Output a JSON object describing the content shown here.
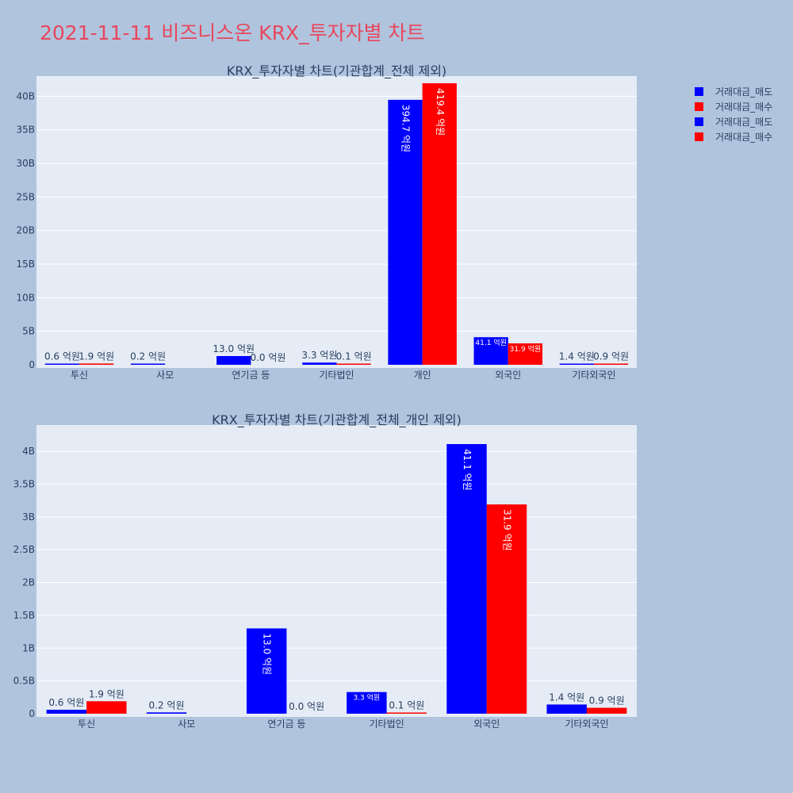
{
  "title": "2021-11-11 비즈니스온 KRX_투자자별 차트",
  "colors": {
    "sell": "#0000ff",
    "buy": "#ff0000",
    "plot_bg": "#e5ecf6",
    "page_bg": "#b0c4de",
    "title": "#e8475c"
  },
  "legend": [
    {
      "label": "거래대금_매도",
      "color": "#0000ff"
    },
    {
      "label": "거래대금_매수",
      "color": "#ff0000"
    },
    {
      "label": "거래대금_매도",
      "color": "#0000ff"
    },
    {
      "label": "거래대금_매수",
      "color": "#ff0000"
    }
  ],
  "chart_data": [
    {
      "type": "bar",
      "title": "KRX_투자자별 차트(기관합계_전체 제외)",
      "categories": [
        "투신",
        "사모",
        "연기금 등",
        "기타법인",
        "개인",
        "외국인",
        "기타외국인"
      ],
      "series": [
        {
          "name": "거래대금_매도",
          "color": "#0000ff",
          "values": [
            60000000,
            20000000,
            1300000000,
            330000000,
            39470000000,
            4110000000,
            140000000
          ],
          "labels": [
            "0.6 억원",
            "0.2 억원",
            "13.0 억원",
            "3.3 억원",
            "394.7 억원",
            "41.1 억원",
            "1.4 억원"
          ]
        },
        {
          "name": "거래대금_매수",
          "color": "#ff0000",
          "values": [
            190000000,
            0,
            0,
            10000000,
            41940000000,
            3190000000,
            90000000
          ],
          "labels": [
            "1.9 억원",
            "",
            "0.0 억원",
            "0.1 억원",
            "419.4 억원",
            "31.9 억원",
            "0.9 억원"
          ]
        }
      ],
      "ylim": [
        0,
        43000000000
      ],
      "yticks": [
        {
          "v": 0,
          "label": "0"
        },
        {
          "v": 5000000000,
          "label": "5B"
        },
        {
          "v": 10000000000,
          "label": "10B"
        },
        {
          "v": 15000000000,
          "label": "15B"
        },
        {
          "v": 20000000000,
          "label": "20B"
        },
        {
          "v": 25000000000,
          "label": "25B"
        },
        {
          "v": 30000000000,
          "label": "30B"
        },
        {
          "v": 35000000000,
          "label": "35B"
        },
        {
          "v": 40000000000,
          "label": "40B"
        }
      ],
      "grid": true
    },
    {
      "type": "bar",
      "title": "KRX_투자자별 차트(기관합계_전체_개인 제외)",
      "categories": [
        "투신",
        "사모",
        "연기금 등",
        "기타법인",
        "외국인",
        "기타외국인"
      ],
      "series": [
        {
          "name": "거래대금_매도",
          "color": "#0000ff",
          "values": [
            60000000,
            20000000,
            1300000000,
            330000000,
            4110000000,
            140000000
          ],
          "labels": [
            "0.6 억원",
            "0.2 억원",
            "13.0 억원",
            "3.3 억원",
            "41.1 억원",
            "1.4 억원"
          ]
        },
        {
          "name": "거래대금_매수",
          "color": "#ff0000",
          "values": [
            190000000,
            0,
            0,
            10000000,
            3190000000,
            90000000
          ],
          "labels": [
            "1.9 억원",
            "",
            "0.0 억원",
            "0.1 억원",
            "31.9 억원",
            "0.9 억원"
          ]
        }
      ],
      "ylim": [
        0,
        4400000000
      ],
      "yticks": [
        {
          "v": 0,
          "label": "0"
        },
        {
          "v": 500000000,
          "label": "0.5B"
        },
        {
          "v": 1000000000,
          "label": "1B"
        },
        {
          "v": 1500000000,
          "label": "1.5B"
        },
        {
          "v": 2000000000,
          "label": "2B"
        },
        {
          "v": 2500000000,
          "label": "2.5B"
        },
        {
          "v": 3000000000,
          "label": "3B"
        },
        {
          "v": 3500000000,
          "label": "3.5B"
        },
        {
          "v": 4000000000,
          "label": "4B"
        }
      ],
      "grid": true
    }
  ]
}
